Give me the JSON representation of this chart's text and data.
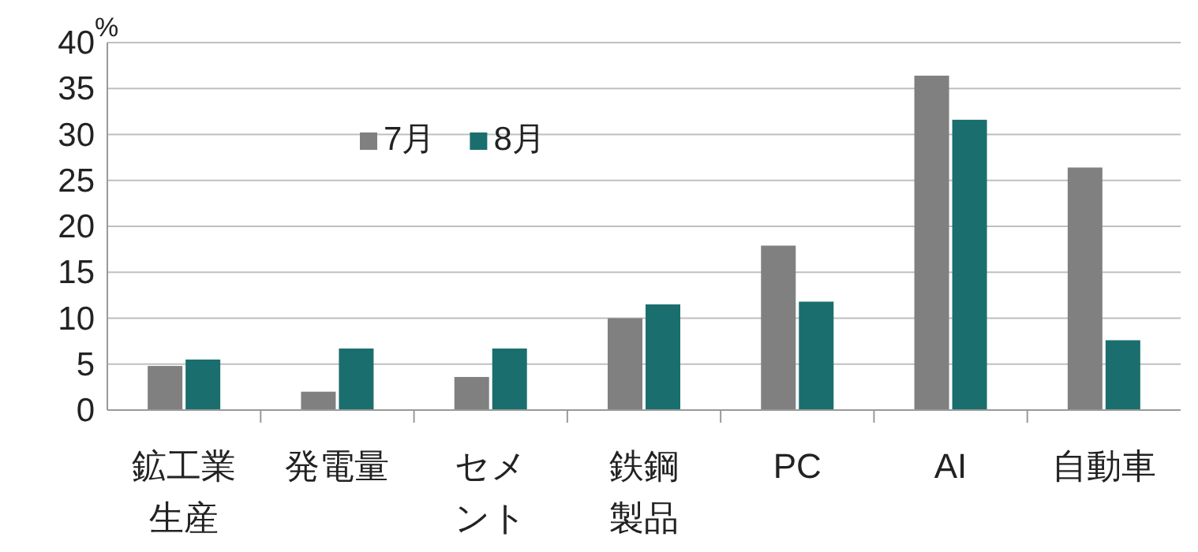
{
  "chart_data": {
    "type": "bar",
    "ylabel": "%",
    "categories": [
      "鉱工業生産",
      "発電量",
      "セメント",
      "鉄鋼製品",
      "PC",
      "AI",
      "自動車"
    ],
    "series": [
      {
        "name": "7月",
        "color": "#808080",
        "values": [
          4.8,
          2.0,
          3.6,
          10.0,
          17.9,
          36.4,
          26.4
        ]
      },
      {
        "name": "8月",
        "color": "#1b6e6e",
        "values": [
          5.5,
          6.7,
          6.7,
          11.5,
          11.8,
          31.6,
          7.6
        ]
      }
    ],
    "ylim": [
      0,
      40
    ],
    "yticks": [
      0,
      5,
      10,
      15,
      20,
      25,
      30,
      35,
      40
    ],
    "grid": "y",
    "legend": "top left"
  }
}
